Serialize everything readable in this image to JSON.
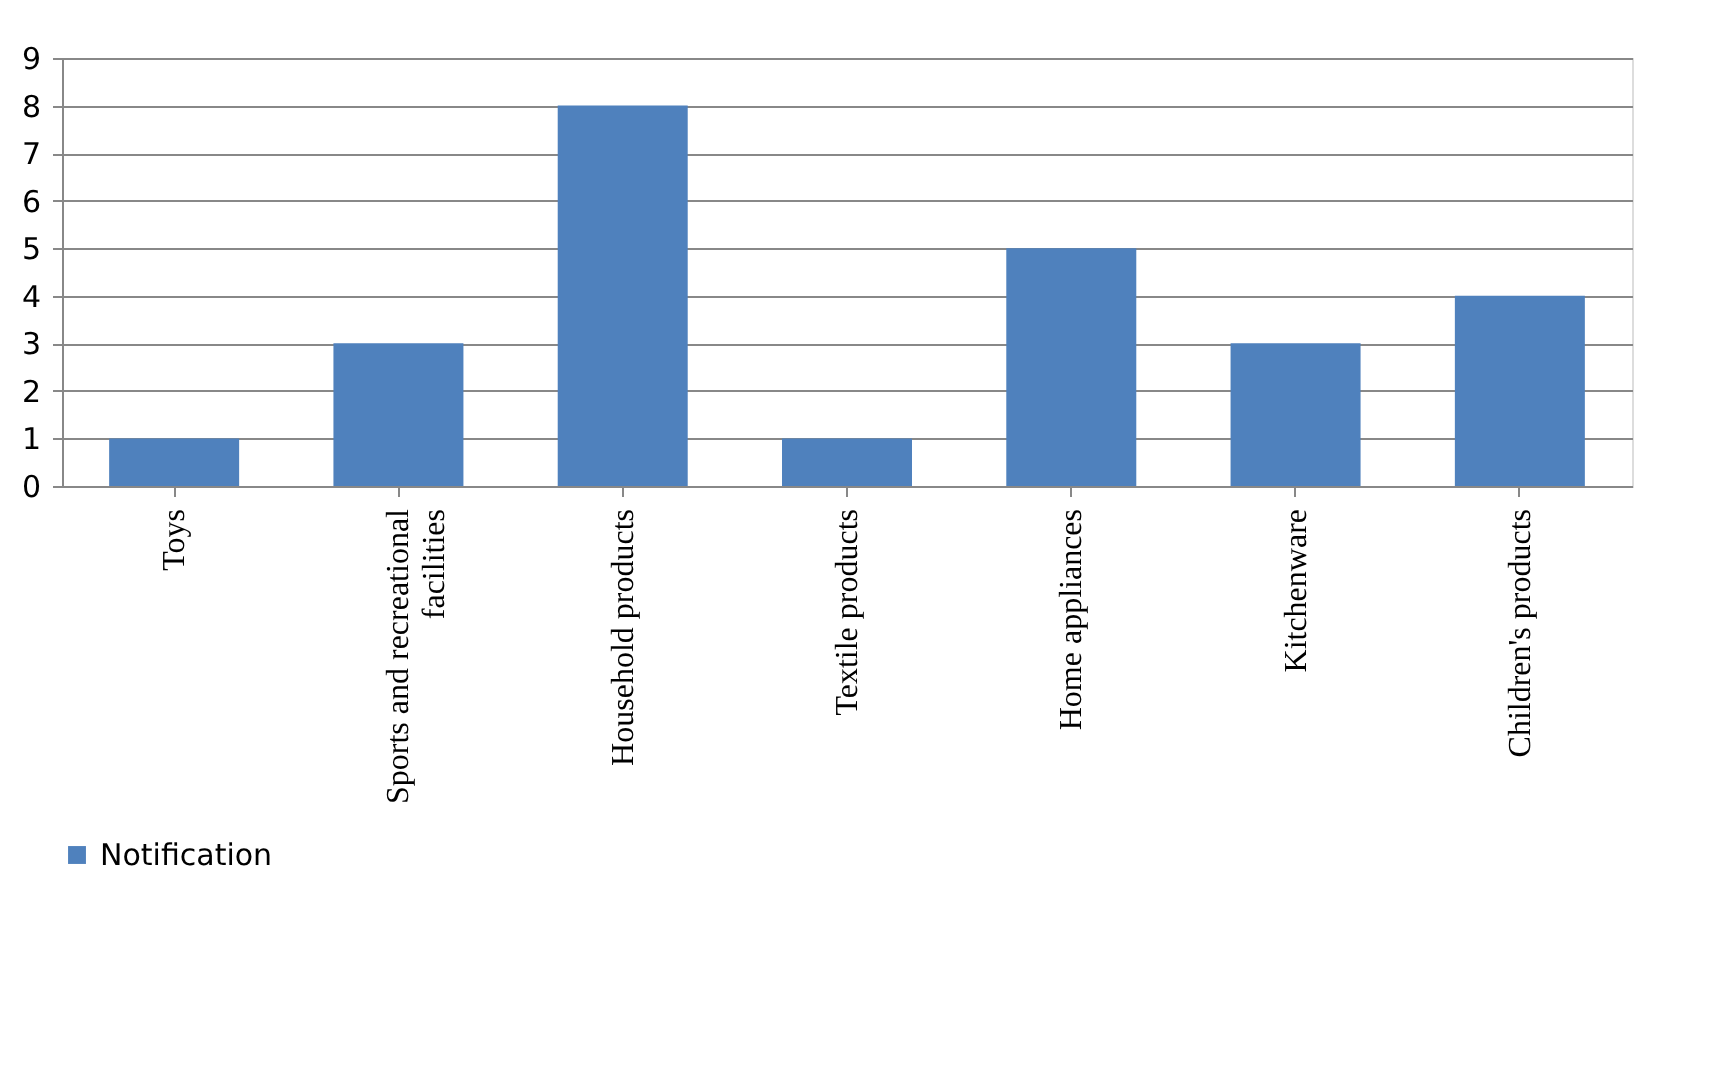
{
  "chart_data": {
    "type": "bar",
    "categories": [
      "Toys",
      "Sports and recreational facilities",
      "Household products",
      "Textile products",
      "Home appliances",
      "Kitchenware",
      "Children's products"
    ],
    "series": [
      {
        "name": "Notification",
        "color": "#4f81bd",
        "values": [
          1,
          3,
          8,
          1,
          5,
          3,
          4
        ]
      }
    ],
    "ylim": [
      0,
      9
    ],
    "yticks": [
      0,
      1,
      2,
      3,
      4,
      5,
      6,
      7,
      8,
      9
    ],
    "grid": "y",
    "legend": "bottom"
  }
}
